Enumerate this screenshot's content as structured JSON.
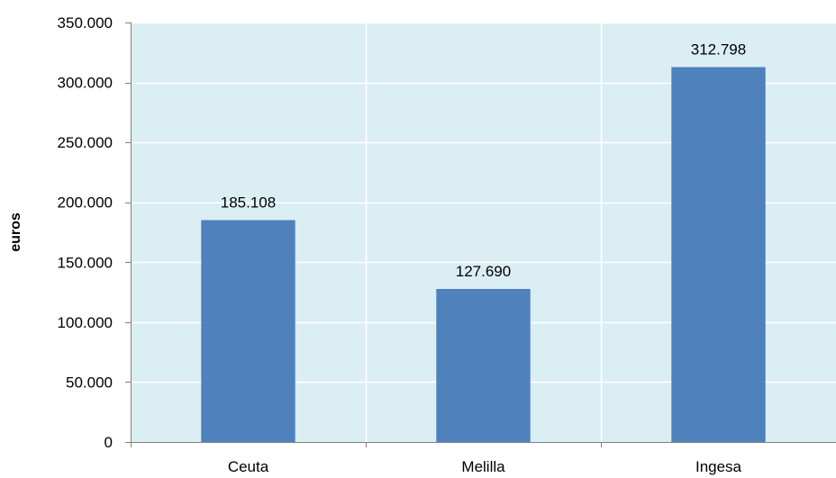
{
  "chart_data": {
    "type": "bar",
    "title": "",
    "xlabel": "",
    "ylabel": "euros",
    "categories": [
      "Ceuta",
      "Melilla",
      "Ingesa"
    ],
    "values": [
      185108,
      127690,
      312798
    ],
    "data_labels": [
      "185.108",
      "127.690",
      "312.798"
    ],
    "ylim": [
      0,
      350000
    ],
    "yticks": [
      0,
      50000,
      100000,
      150000,
      200000,
      250000,
      300000,
      350000
    ],
    "ytick_labels": [
      "0",
      "50.000",
      "100.000",
      "150.000",
      "200.000",
      "250.000",
      "300.000",
      "350.000"
    ],
    "grid": true,
    "legend": "none",
    "colors": {
      "bar": "#4f81bd",
      "plot_background": "#dbeef4",
      "grid": "#ffffff",
      "axis": "#808080"
    }
  }
}
